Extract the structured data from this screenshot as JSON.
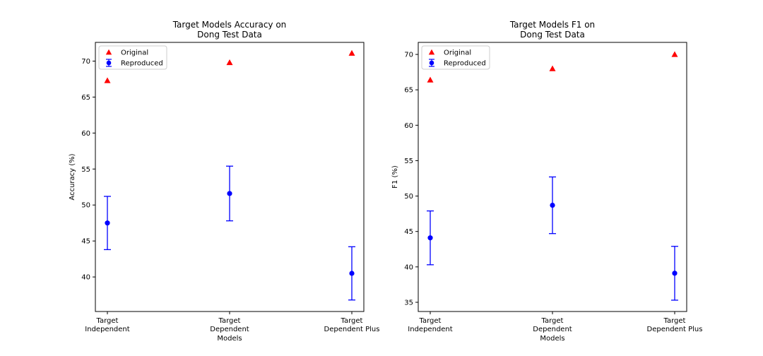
{
  "chart_data": [
    {
      "type": "scatter",
      "title": "Target Models Accuracy on\nDong Test Data",
      "xlabel": "Models",
      "ylabel": "Accuracy (%)",
      "categories": [
        "Target\nIndependent",
        "Target\nDependent",
        "Target\nDependent Plus"
      ],
      "ylim": [
        35.2,
        72.6
      ],
      "yticks": [
        40,
        45,
        50,
        55,
        60,
        65,
        70
      ],
      "grid": false,
      "legend_position": "upper-left",
      "series": [
        {
          "name": "Original",
          "marker": "triangle",
          "color": "#ff0000",
          "values": [
            67.3,
            69.8,
            71.1
          ]
        },
        {
          "name": "Reproduced",
          "marker": "circle",
          "color": "#0000ff",
          "values": [
            47.5,
            51.6,
            40.5
          ],
          "error": [
            3.7,
            3.8,
            3.7
          ]
        }
      ]
    },
    {
      "type": "scatter",
      "title": "Target Models F1 on\nDong Test Data",
      "xlabel": "Models",
      "ylabel": "F1 (%)",
      "categories": [
        "Target\nIndependent",
        "Target\nDependent",
        "Target\nDependent Plus"
      ],
      "ylim": [
        33.7,
        71.7
      ],
      "yticks": [
        35,
        40,
        45,
        50,
        55,
        60,
        65,
        70
      ],
      "grid": false,
      "legend_position": "upper-left",
      "series": [
        {
          "name": "Original",
          "marker": "triangle",
          "color": "#ff0000",
          "values": [
            66.4,
            68.0,
            70.0
          ]
        },
        {
          "name": "Reproduced",
          "marker": "circle",
          "color": "#0000ff",
          "values": [
            44.1,
            48.7,
            39.1
          ],
          "error": [
            3.8,
            4.0,
            3.8
          ]
        }
      ]
    }
  ]
}
